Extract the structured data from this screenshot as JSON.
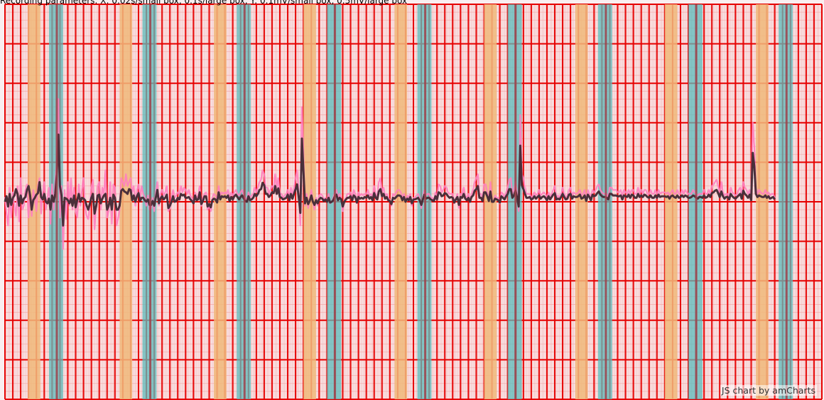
{
  "params_text": "Recording parameters: X: 0.02s/small box, 0.1s/large box, Y: 0.1mV/small box, 0.5mV/large box",
  "credit_text": "JS chart by amCharts",
  "colors": {
    "background": "#f9eef0",
    "minor_grid": "#f4a6a6",
    "major_grid": "#e60000",
    "band_p": "#f0b87a",
    "band_qrs": "#5bbcbc",
    "beat_marker": "#a0404a",
    "raw_signal": "#ff7fbf",
    "filtered_signal": "#4a2f3a"
  },
  "chart_data": {
    "type": "line",
    "title": "",
    "xlabel": "",
    "ylabel": "",
    "x_unit": "s",
    "y_unit": "mV",
    "xlim": [
      0,
      10.4
    ],
    "ylim": [
      -2.5,
      2.5
    ],
    "minor_grid": {
      "x": 0.02,
      "y": 0.1
    },
    "major_grid": {
      "x": 0.1,
      "y": 0.5
    },
    "grid": true,
    "legend": "none",
    "r_peaks_s": [
      0.66,
      1.85,
      3.05,
      4.2,
      5.35,
      6.5,
      7.65,
      8.8,
      9.95
    ],
    "p_bands_s": [
      [
        0.29,
        0.45
      ],
      [
        1.46,
        1.62
      ],
      [
        2.66,
        2.82
      ],
      [
        3.8,
        3.96
      ],
      [
        4.96,
        5.12
      ],
      [
        6.1,
        6.26
      ],
      [
        7.26,
        7.42
      ],
      [
        8.4,
        8.56
      ],
      [
        9.56,
        9.72
      ]
    ],
    "qrs_bands_s": [
      [
        0.56,
        0.74
      ],
      [
        1.75,
        1.93
      ],
      [
        2.95,
        3.13
      ],
      [
        4.1,
        4.28
      ],
      [
        5.25,
        5.43
      ],
      [
        6.4,
        6.58
      ],
      [
        7.55,
        7.73
      ],
      [
        8.7,
        8.88
      ],
      [
        9.85,
        10.03
      ]
    ],
    "series": [
      {
        "name": "",
        "x_step": 0.02,
        "values": [
          0.0,
          0.07,
          -0.06,
          0.1,
          -0.04,
          0.05,
          0.08,
          0.16,
          0.1,
          -0.05,
          0.08,
          -0.02,
          0.04,
          0.06,
          0.15,
          0.2,
          0.08,
          -0.1,
          0.02,
          0.05,
          0.09,
          0.11,
          0.25,
          0.06,
          0.03,
          0.1,
          0.0,
          -0.02,
          0.04,
          -0.1,
          0.08,
          0.0,
          0.1,
          0.35,
          0.85,
          0.2,
          0.08,
          -0.3,
          0.05,
          0.04,
          0.02,
          -0.02,
          0.04,
          -0.05,
          0.08,
          -0.07,
          0.02,
          0.1,
          0.0,
          0.05,
          0.04,
          0.02,
          -0.05,
          -0.1,
          -0.03,
          0.05,
          0.1,
          -0.15,
          -0.06,
          0.08,
          0.09,
          -0.02,
          0.04,
          0.08,
          0.1,
          -0.1,
          -0.05,
          0.05,
          -0.1,
          0.09,
          0.05,
          -0.1,
          -0.1,
          -0.05,
          0.14,
          0.16,
          0.13,
          0.12,
          0.1,
          0.16,
          0.15,
          0.02,
          0.08,
          0.0,
          0.07,
          0.11,
          0.01,
          0.05,
          0.05,
          0.02,
          0.0,
          0.03,
          -0.04,
          -0.04,
          0.01,
          -0.05,
          0.05,
          0.15,
          -0.02,
          0.04,
          0.07,
          0.03,
          0.05,
          0.09,
          -0.08,
          -0.05,
          0.0,
          0.07,
          0.0,
          0.01,
          0.05,
          0.03,
          0.1,
          0.08,
          0.09,
          0.05,
          0.05,
          0.06,
          0.03,
          0.01,
          -0.02,
          0.08,
          0.02,
          0.03,
          0.12,
          -0.03,
          0.01,
          0.07,
          0.07,
          -0.06,
          -0.03,
          -0.07,
          0.02,
          0.04,
          0.03,
          -0.01,
          0.12,
          0.03,
          0.07,
          0.06,
          0.07,
          0.05,
          0.08,
          0.01,
          0.06,
          0.03,
          0.07,
          0.09,
          0.06,
          0.03,
          0.06,
          0.08,
          0.04,
          0.01,
          0.0,
          0.07,
          0.02,
          0.03,
          0.05,
          0.1,
          0.07,
          0.1,
          0.15,
          0.16,
          0.24,
          0.21,
          0.1,
          0.1,
          0.06,
          0.08,
          0.12,
          0.11,
          0.2,
          0.1,
          0.17,
          0.06,
          0.05,
          0.03,
          0.04,
          0.05,
          0.09,
          0.02,
          0.1,
          0.04,
          0.1,
          0.16,
          0.22,
          0.05,
          -0.14,
          0.8,
          0.38,
          -0.02,
          0.05,
          -0.03,
          0.01,
          0.08,
          0.0,
          -0.04,
          0.02,
          -0.02,
          0.03,
          0.05,
          0.04,
          0.01,
          0.03,
          0.0,
          0.05,
          -0.01,
          0.0,
          0.02,
          0.07,
          0.09,
          0.02,
          0.05,
          0.03,
          -0.06,
          0.0,
          0.03,
          0.05,
          0.05,
          0.07,
          0.02,
          0.08,
          0.06,
          -0.01,
          0.06,
          0.04,
          0.05,
          0.04,
          0.06,
          0.05,
          0.08,
          0.04,
          0.06,
          0.02,
          0.11,
          0.05,
          0.03,
          0.13,
          0.16,
          0.07,
          0.1,
          0.04,
          0.06,
          0.02,
          0.01,
          -0.03,
          0.05,
          0.04,
          0.06,
          0.08,
          0.08,
          0.07,
          0.02,
          0.06,
          0.0,
          0.04,
          0.02,
          0.06,
          -0.02,
          0.03,
          0.03,
          0.04,
          0.05,
          0.02,
          -0.04,
          0.03,
          0.09,
          0.04,
          0.05,
          0.05,
          0.03,
          0.02,
          0.01,
          0.07,
          0.03,
          0.12,
          0.11,
          0.07,
          0.08,
          0.11,
          0.1,
          0.07,
          0.05,
          0.06,
          0.05,
          -0.01,
          0.03,
          0.06,
          -0.04,
          0.06,
          0.05,
          0.1,
          0.04,
          0.02,
          0.05,
          0.0,
          0.06,
          0.08,
          0.14,
          0.16,
          0.2,
          0.05,
          0.05,
          0.01,
          0.12,
          0.12,
          0.07,
          0.01,
          0.13,
          0.0,
          0.0,
          0.04,
          0.03,
          0.02,
          -0.01,
          0.07,
          0.05,
          0.03,
          0.07,
          0.1,
          0.16,
          0.16,
          0.05,
          0.08,
          0.14,
          0.05,
          -0.06,
          0.71,
          0.21,
          0.16,
          0.1,
          0.05,
          0.05,
          0.06,
          0.03,
          0.04,
          0.07,
          0.04,
          0.06,
          0.08,
          0.04,
          0.06,
          0.07,
          0.05,
          0.02,
          0.07,
          0.03,
          0.06,
          0.09,
          0.11,
          0.03,
          0.04,
          0.03,
          0.06,
          0.1,
          0.06,
          0.03,
          0.04,
          0.09,
          0.1,
          0.04,
          0.07,
          0.06,
          0.06,
          0.07,
          0.09,
          0.04,
          0.05,
          0.08,
          0.01,
          0.09,
          0.06,
          0.02,
          0.09,
          0.07,
          0.08,
          0.11,
          0.13,
          0.09,
          0.07,
          0.06,
          0.06,
          0.05,
          0.03,
          0.1,
          0.1,
          0.08,
          0.08,
          0.08,
          0.07,
          0.07,
          0.08,
          0.03,
          0.08,
          0.07,
          0.06,
          0.09,
          0.05,
          0.09,
          0.08,
          0.05,
          0.05,
          0.1,
          0.06,
          0.08,
          0.06,
          0.09,
          0.08,
          0.06,
          0.05,
          0.08,
          0.05,
          0.05,
          0.08,
          0.05,
          0.09,
          0.06,
          0.07,
          0.07,
          0.07,
          0.06,
          0.07,
          0.04,
          0.07,
          0.08,
          0.06,
          0.05,
          0.08,
          0.05,
          0.06,
          0.08,
          0.06,
          0.08,
          0.07,
          0.05,
          0.05,
          0.06,
          0.08,
          0.07,
          0.05,
          0.04,
          0.06,
          0.06,
          0.05,
          0.08,
          0.05,
          0.06,
          0.09,
          0.06,
          0.11,
          0.12,
          0.14,
          0.15,
          0.11,
          0.06,
          0.13,
          0.07,
          0.04,
          0.06,
          0.06,
          0.03,
          0.1,
          0.07,
          0.05,
          0.04,
          0.06,
          0.08,
          0.1,
          0.04,
          0.14,
          0.1,
          0.08,
          0.05,
          0.09,
          0.02,
          0.62,
          0.45,
          0.1,
          0.06,
          0.08,
          0.07,
          0.06,
          0.06,
          0.08,
          0.05,
          0.07,
          0.04,
          0.05,
          0.06,
          0.03
        ]
      },
      {
        "name": "",
        "x_step": 0.02,
        "values": [
          0.06,
          -0.15,
          -0.3,
          0.18,
          -0.2,
          0.12,
          -0.05,
          -0.18,
          0.2,
          -0.25,
          0.3,
          -0.1,
          -0.05,
          0.15,
          0.22,
          -0.2,
          0.1,
          -0.18,
          0.15,
          0.05,
          -0.12,
          0.2,
          0.3,
          -0.15,
          0.1,
          0.25,
          -0.1,
          0.05,
          0.18,
          -0.28,
          0.22,
          -0.1,
          0.25,
          0.5,
          1.3,
          -0.2,
          0.2,
          -0.6,
          0.15,
          -0.22,
          0.25,
          -0.05,
          0.3,
          -0.1,
          0.18,
          -0.12,
          -0.2,
          0.22,
          -0.05,
          0.15,
          0.3,
          -0.08,
          -0.18,
          -0.22,
          -0.05,
          0.18,
          0.28,
          -0.35,
          -0.08,
          0.2,
          0.25,
          -0.1,
          0.18,
          0.1,
          0.4,
          -0.2,
          -0.12,
          0.25,
          -0.28,
          0.22,
          0.18,
          -0.3,
          -0.22,
          -0.1,
          0.3,
          0.25,
          0.2,
          0.35,
          0.2,
          0.25,
          0.3,
          0.12,
          0.2,
          -0.05,
          0.15,
          0.22,
          0.05,
          0.2,
          0.1,
          0.05,
          -0.05,
          0.08,
          -0.1,
          -0.08,
          0.05,
          -0.12,
          0.12,
          0.25,
          -0.05,
          0.1,
          0.15,
          0.08,
          0.12,
          0.2,
          -0.12,
          -0.08,
          0.05,
          0.15,
          0.05,
          0.08,
          0.12,
          0.1,
          0.2,
          0.12,
          0.18,
          0.15,
          0.1,
          0.15,
          0.08,
          0.05,
          0.0,
          0.12,
          0.05,
          0.08,
          0.2,
          -0.05,
          0.05,
          0.1,
          0.12,
          -0.1,
          -0.05,
          -0.12,
          0.05,
          0.1,
          0.08,
          0.02,
          0.2,
          0.08,
          0.12,
          0.1,
          0.12,
          0.1,
          0.15,
          0.05,
          0.12,
          0.08,
          0.12,
          0.15,
          0.1,
          0.08,
          0.12,
          0.15,
          0.08,
          0.05,
          0.02,
          0.12,
          0.05,
          0.08,
          0.1,
          0.18,
          0.12,
          0.18,
          0.25,
          0.28,
          0.4,
          0.35,
          0.18,
          0.18,
          0.1,
          0.15,
          0.2,
          0.18,
          0.35,
          0.18,
          0.3,
          0.1,
          0.1,
          0.05,
          0.08,
          0.1,
          0.15,
          0.05,
          0.18,
          0.08,
          0.18,
          0.3,
          0.4,
          0.1,
          -0.3,
          1.2,
          0.6,
          -0.05,
          0.1,
          -0.08,
          0.05,
          0.15,
          0.0,
          -0.1,
          0.05,
          -0.05,
          0.08,
          0.1,
          0.08,
          0.02,
          0.05,
          0.0,
          0.1,
          -0.02,
          0.0,
          0.05,
          0.12,
          0.15,
          0.05,
          0.1,
          0.05,
          -0.12,
          0.0,
          0.05,
          0.1,
          0.1,
          0.12,
          0.05,
          0.15,
          0.1,
          -0.02,
          0.12,
          0.08,
          0.1,
          0.08,
          0.1,
          0.1,
          0.15,
          0.08,
          0.1,
          0.05,
          0.2,
          0.1,
          0.05,
          0.25,
          0.3,
          0.12,
          0.18,
          0.08,
          0.1,
          0.05,
          0.02,
          -0.05,
          0.1,
          0.08,
          0.12,
          0.15,
          0.15,
          0.12,
          0.05,
          0.1,
          0.0,
          0.08,
          0.05,
          0.1,
          -0.05,
          0.05,
          0.05,
          0.08,
          0.1,
          0.05,
          -0.08,
          0.05,
          0.15,
          0.08,
          0.1,
          0.1,
          0.05,
          0.05,
          0.02,
          0.12,
          0.05,
          0.22,
          0.2,
          0.12,
          0.15,
          0.2,
          0.18,
          0.12,
          0.1,
          0.1,
          0.1,
          -0.02,
          0.05,
          0.1,
          -0.08,
          0.1,
          0.1,
          0.18,
          0.08,
          0.05,
          0.1,
          0.0,
          0.1,
          0.15,
          0.25,
          0.3,
          0.35,
          0.1,
          0.1,
          0.02,
          0.22,
          0.22,
          0.12,
          0.02,
          0.25,
          0.0,
          0.0,
          0.08,
          0.05,
          0.05,
          -0.02,
          0.12,
          0.1,
          0.05,
          0.12,
          0.18,
          0.28,
          0.3,
          0.1,
          0.15,
          0.25,
          0.1,
          -0.12,
          1.1,
          0.35,
          0.3,
          0.18,
          0.1,
          0.1,
          0.1,
          0.05,
          0.08,
          0.12,
          0.08,
          0.1,
          0.15,
          0.08,
          0.1,
          0.12,
          0.1,
          0.05,
          0.12,
          0.05,
          0.1,
          0.15,
          0.2,
          0.05,
          0.08,
          0.05,
          0.1,
          0.18,
          0.1,
          0.05,
          0.08,
          0.15,
          0.18,
          0.08,
          0.12,
          0.1,
          0.1,
          0.12,
          0.15,
          0.08,
          0.1,
          0.15,
          0.02,
          0.15,
          0.1,
          0.05,
          0.15,
          0.12,
          0.15,
          0.2,
          0.22,
          0.15,
          0.12,
          0.1,
          0.1,
          0.1,
          0.05,
          0.18,
          0.18,
          0.15,
          0.15,
          0.15,
          0.12,
          0.12,
          0.15,
          0.05,
          0.15,
          0.12,
          0.1,
          0.15,
          0.1,
          0.15,
          0.15,
          0.1,
          0.1,
          0.18,
          0.1,
          0.15,
          0.1,
          0.15,
          0.15,
          0.1,
          0.1,
          0.15,
          0.1,
          0.1,
          0.15,
          0.1,
          0.15,
          0.1,
          0.12,
          0.12,
          0.12,
          0.1,
          0.12,
          0.08,
          0.12,
          0.15,
          0.1,
          0.1,
          0.15,
          0.1,
          0.1,
          0.15,
          0.1,
          0.15,
          0.12,
          0.1,
          0.1,
          0.1,
          0.15,
          0.12,
          0.1,
          0.08,
          0.1,
          0.1,
          0.1,
          0.15,
          0.1,
          0.1,
          0.15,
          0.1,
          0.2,
          0.22,
          0.25,
          0.28,
          0.2,
          0.1,
          0.25,
          0.12,
          0.08,
          0.1,
          0.1,
          0.05,
          0.18,
          0.12,
          0.1,
          0.08,
          0.1,
          0.15,
          0.18,
          0.08,
          0.25,
          0.18,
          0.15,
          0.1,
          0.15,
          0.05,
          1.0,
          0.7,
          0.18,
          0.1,
          0.15,
          0.12,
          0.1,
          0.1,
          0.15,
          0.1,
          0.12,
          0.08,
          0.1,
          0.1,
          0.05
        ]
      }
    ]
  }
}
